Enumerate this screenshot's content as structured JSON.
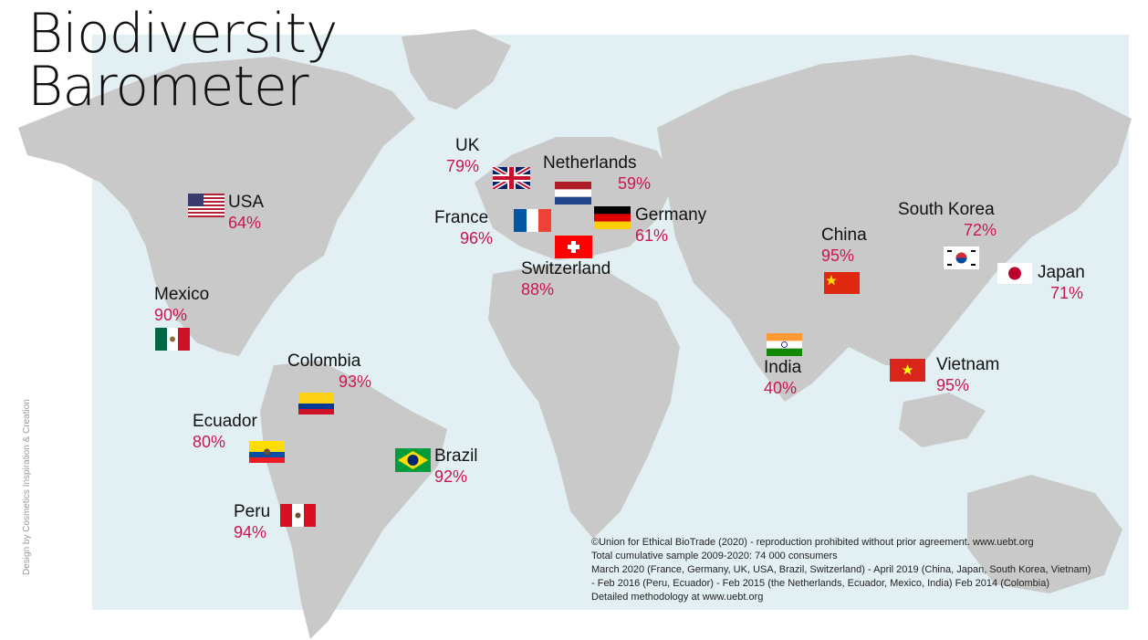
{
  "title": {
    "line1": "Biodiversity",
    "line2": "Barometer"
  },
  "credit": "Design by Cosmetics Inspiration & Creation",
  "countries": {
    "usa": {
      "name": "USA",
      "pct": "64%",
      "flag": "usa-flag-icon"
    },
    "mexico": {
      "name": "Mexico",
      "pct": "90%",
      "flag": "mexico-flag-icon"
    },
    "colombia": {
      "name": "Colombia",
      "pct": "93%",
      "flag": "colombia-flag-icon"
    },
    "ecuador": {
      "name": "Ecuador",
      "pct": "80%",
      "flag": "ecuador-flag-icon"
    },
    "peru": {
      "name": "Peru",
      "pct": "94%",
      "flag": "peru-flag-icon"
    },
    "brazil": {
      "name": "Brazil",
      "pct": "92%",
      "flag": "brazil-flag-icon"
    },
    "uk": {
      "name": "UK",
      "pct": "79%",
      "flag": "uk-flag-icon"
    },
    "netherlands": {
      "name": "Netherlands",
      "pct": "59%",
      "flag": "netherlands-flag-icon"
    },
    "france": {
      "name": "France",
      "pct": "96%",
      "flag": "france-flag-icon"
    },
    "germany": {
      "name": "Germany",
      "pct": "61%",
      "flag": "germany-flag-icon"
    },
    "switzerland": {
      "name": "Switzerland",
      "pct": "88%",
      "flag": "switzerland-flag-icon"
    },
    "china": {
      "name": "China",
      "pct": "95%",
      "flag": "china-flag-icon"
    },
    "south_korea": {
      "name": "South Korea",
      "pct": "72%",
      "flag": "south-korea-flag-icon"
    },
    "japan": {
      "name": "Japan",
      "pct": "71%",
      "flag": "japan-flag-icon"
    },
    "india": {
      "name": "India",
      "pct": "40%",
      "flag": "india-flag-icon"
    },
    "vietnam": {
      "name": "Vietnam",
      "pct": "95%",
      "flag": "vietnam-flag-icon"
    }
  },
  "notes": [
    "©Union for Ethical BioTrade (2020) - reproduction prohibited without prior agreement. www.uebt.org",
    "Total cumulative sample 2009-2020: 74 000 consumers",
    "March 2020 (France, Germany, UK, USA, Brazil, Switzerland) - April 2019 (China, Japan, South Korea, Vietnam)",
    "- Feb 2016 (Peru, Ecuador) -  Feb 2015 (the Netherlands, Ecuador, Mexico, India) Feb 2014 (Colombia)",
    "Detailed methodology at www.uebt.org"
  ],
  "colors": {
    "percent": "#c8174f",
    "land": "#c9c9c9",
    "ocean_panel": "#e3f0f3"
  }
}
